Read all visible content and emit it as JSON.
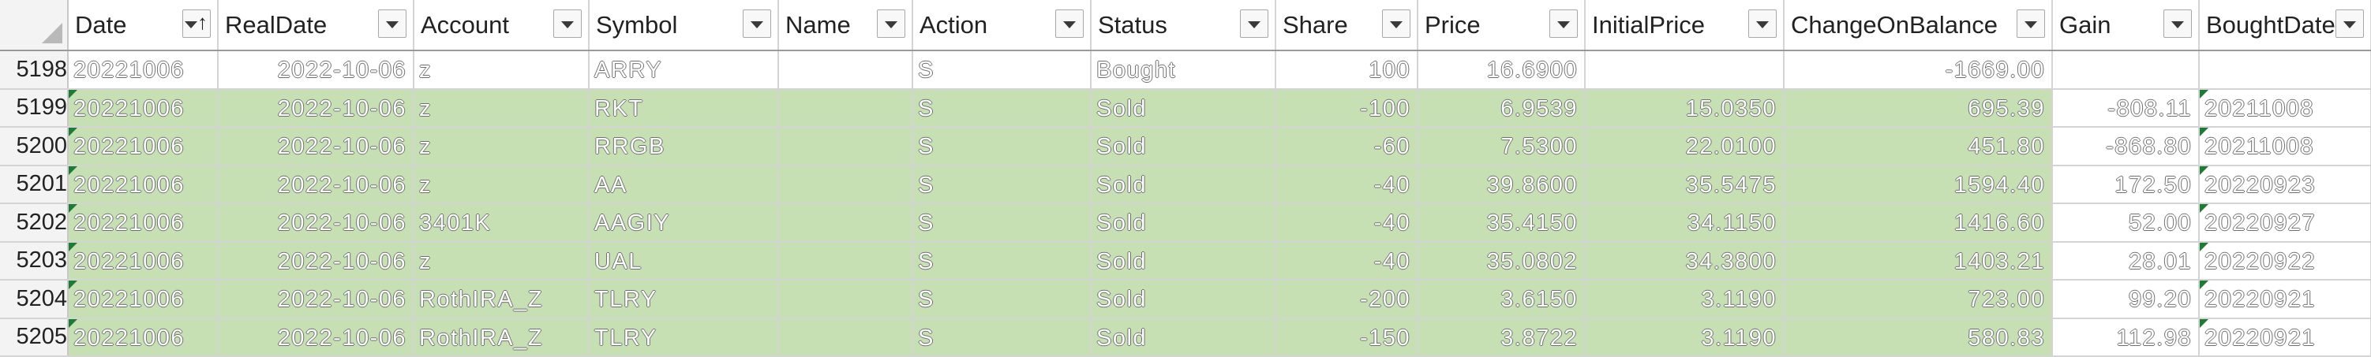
{
  "headers": [
    "Date",
    "RealDate",
    "Account",
    "Symbol",
    "Name",
    "Action",
    "Status",
    "Share",
    "Price",
    "InitialPrice",
    "ChangeOnBalance",
    "Gain",
    "BoughtDate"
  ],
  "rows": [
    {
      "rownum": "5198",
      "cells": [
        "20221006",
        "2022-10-06",
        "z",
        "ARRY",
        "",
        "S",
        "Bought",
        "100",
        "16.6900",
        "",
        "-1669.00",
        "",
        ""
      ]
    },
    {
      "rownum": "5199",
      "cells": [
        "20221006",
        "2022-10-06",
        "z",
        "RKT",
        "",
        "S",
        "Sold",
        "-100",
        "6.9539",
        "15.0350",
        "695.39",
        "-808.11",
        "20211008"
      ]
    },
    {
      "rownum": "5200",
      "cells": [
        "20221006",
        "2022-10-06",
        "z",
        "RRGB",
        "",
        "S",
        "Sold",
        "-60",
        "7.5300",
        "22.0100",
        "451.80",
        "-868.80",
        "20211008"
      ]
    },
    {
      "rownum": "5201",
      "cells": [
        "20221006",
        "2022-10-06",
        "z",
        "AA",
        "",
        "S",
        "Sold",
        "-40",
        "39.8600",
        "35.5475",
        "1594.40",
        "172.50",
        "20220923"
      ]
    },
    {
      "rownum": "5202",
      "cells": [
        "20221006",
        "2022-10-06",
        "3401K",
        "AAGIY",
        "",
        "S",
        "Sold",
        "-40",
        "35.4150",
        "34.1150",
        "1416.60",
        "52.00",
        "20220927"
      ]
    },
    {
      "rownum": "5203",
      "cells": [
        "20221006",
        "2022-10-06",
        "z",
        "UAL",
        "",
        "S",
        "Sold",
        "-40",
        "35.0802",
        "34.3800",
        "1403.21",
        "28.01",
        "20220922"
      ]
    },
    {
      "rownum": "5204",
      "cells": [
        "20221006",
        "2022-10-06",
        "RothIRA_Z",
        "TLRY",
        "",
        "S",
        "Sold",
        "-200",
        "3.6150",
        "3.1190",
        "723.00",
        "99.20",
        "20220921"
      ]
    },
    {
      "rownum": "5205",
      "cells": [
        "20221006",
        "2022-10-06",
        "RothIRA_Z",
        "TLRY",
        "",
        "S",
        "Sold",
        "-150",
        "3.8722",
        "3.1190",
        "580.83",
        "112.98",
        "20220921"
      ]
    }
  ]
}
